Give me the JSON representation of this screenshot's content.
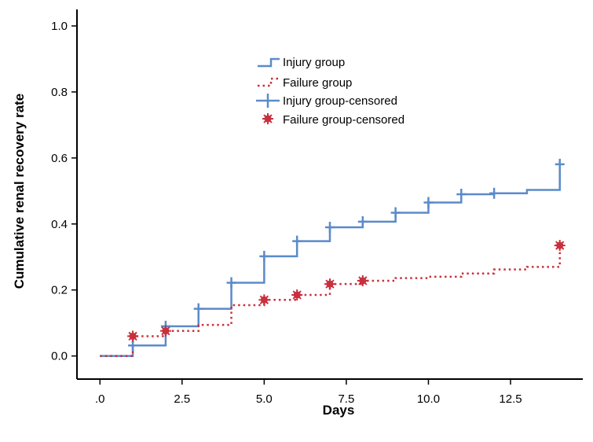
{
  "chart_data": {
    "type": "line",
    "subtype": "kaplan-meier-cumulative-step",
    "title": "",
    "xlabel": "Days",
    "ylabel": "Cumulative renal recovery rate",
    "xlim": [
      -0.7,
      14.7
    ],
    "ylim": [
      -0.07,
      1.05
    ],
    "x_ticks": [
      0,
      2.5,
      5,
      7.5,
      10,
      12.5
    ],
    "x_tick_labels": [
      ".0",
      "2.5",
      "5.0",
      "7.5",
      "10.0",
      "12.5"
    ],
    "y_ticks": [
      0,
      0.2,
      0.4,
      0.6,
      0.8,
      1.0
    ],
    "y_tick_labels": [
      "0.0",
      "0.2",
      "0.4",
      "0.6",
      "0.8",
      "1.0"
    ],
    "grid": false,
    "legend_position": "top-center",
    "series": [
      {
        "name": "Injury group",
        "color": "#5b8bc9",
        "line_style": "solid",
        "step_x": [
          0,
          1,
          2,
          3,
          4,
          5,
          6,
          7,
          8,
          9,
          10,
          11,
          12,
          13,
          14
        ],
        "step_y": [
          0,
          0.032,
          0.09,
          0.143,
          0.222,
          0.302,
          0.348,
          0.39,
          0.407,
          0.434,
          0.465,
          0.49,
          0.493,
          0.503,
          0.581
        ]
      },
      {
        "name": "Failure group",
        "color": "#c9303e",
        "line_style": "dotted",
        "step_x": [
          0,
          1,
          2,
          3,
          4,
          5,
          6,
          7,
          8,
          9,
          10,
          11,
          12,
          13,
          14
        ],
        "step_y": [
          0,
          0.06,
          0.076,
          0.094,
          0.154,
          0.17,
          0.185,
          0.218,
          0.228,
          0.236,
          0.24,
          0.25,
          0.262,
          0.27,
          0.335
        ]
      }
    ],
    "censored": [
      {
        "name": "Injury group-censored",
        "color": "#5b8bc9",
        "marker": "plus",
        "points": [
          [
            1,
            0.032
          ],
          [
            2,
            0.09
          ],
          [
            3,
            0.143
          ],
          [
            4,
            0.222
          ],
          [
            5,
            0.302
          ],
          [
            6,
            0.348
          ],
          [
            7,
            0.39
          ],
          [
            8,
            0.407
          ],
          [
            9,
            0.434
          ],
          [
            10,
            0.465
          ],
          [
            11,
            0.49
          ],
          [
            12,
            0.493
          ],
          [
            14,
            0.581
          ]
        ]
      },
      {
        "name": "Failure group-censored",
        "color": "#c9303e",
        "marker": "burst",
        "points": [
          [
            1,
            0.06
          ],
          [
            2,
            0.076
          ],
          [
            5,
            0.17
          ],
          [
            6,
            0.185
          ],
          [
            7,
            0.218
          ],
          [
            8,
            0.228
          ],
          [
            14,
            0.335
          ]
        ]
      }
    ]
  }
}
